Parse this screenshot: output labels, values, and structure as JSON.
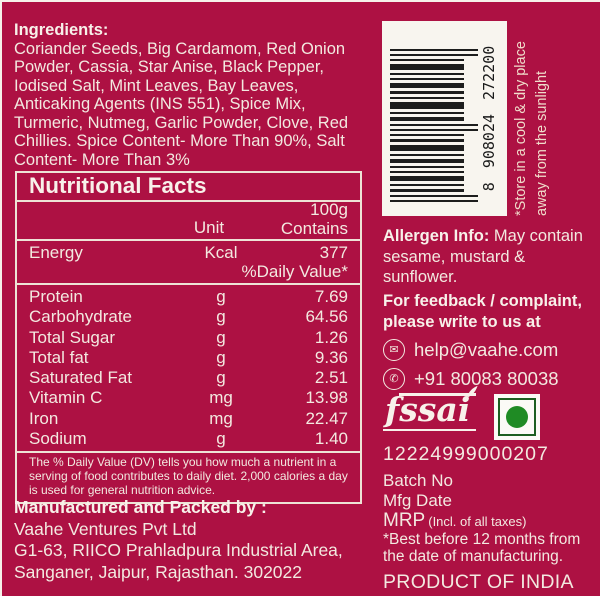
{
  "colors": {
    "background": "#ad1143",
    "text": "#f3e9e0",
    "table_border": "#eee3d6",
    "barcode_bg": "#f8f5ef",
    "bar_color": "#1d1d1d",
    "veg_green": "#1f8b24",
    "veg_border_green": "#1c5e20"
  },
  "ingredients": {
    "heading": "Ingredients:",
    "lines": [
      "Coriander Seeds, Big Cardamom, Red Onion",
      "Powder, Cassia, Star Anise, Black Pepper,",
      "Iodised Salt, Mint Leaves, Bay Leaves,",
      "Anticaking Agents (INS 551), Spice Mix,",
      "Turmeric, Nutmeg, Garlic Powder, Clove, Red",
      "Chillies. Spice Content- More Than 90%, Salt",
      "Content- More Than 3%"
    ]
  },
  "nutrition": {
    "title": "Nutritional Facts",
    "col_unit": "Unit",
    "col_amount_line1": "100g",
    "col_amount_line2": "Contains",
    "energy": {
      "label": "Energy",
      "unit": "Kcal",
      "value": "377"
    },
    "daily_value_note": "%Daily Value*",
    "rows": [
      {
        "label": "Protein",
        "unit": "g",
        "value": "7.69"
      },
      {
        "label": "Carbohydrate",
        "unit": "g",
        "value": "64.56"
      },
      {
        "label": "Total Sugar",
        "unit": "g",
        "value": "1.26"
      },
      {
        "label": "Total fat",
        "unit": "g",
        "value": "9.36"
      },
      {
        "label": "Saturated Fat",
        "unit": "g",
        "value": "2.51"
      },
      {
        "label": "Vitamin C",
        "unit": "mg",
        "value": "13.98"
      },
      {
        "label": "Iron",
        "unit": "mg",
        "value": "22.47"
      },
      {
        "label": "Sodium",
        "unit": "g",
        "value": "1.40"
      }
    ],
    "footnote": "The % Daily Value (DV) tells you how much a nutrient in a serving of food contributes to daily diet. 2,000 calories a day is used for general nutrition advice."
  },
  "barcode": {
    "number": "8 908024 272200",
    "bars": [
      {
        "t": 2,
        "l": true
      },
      {
        "t": 2,
        "l": true
      },
      {
        "t": 3
      },
      {
        "t": 2
      },
      {
        "t": 5
      },
      {
        "t": 2
      },
      {
        "t": 2
      },
      {
        "t": 4
      },
      {
        "t": 2
      },
      {
        "t": 6
      },
      {
        "t": 3
      },
      {
        "t": 2
      },
      {
        "t": 2,
        "l": true
      },
      {
        "t": 2,
        "l": true
      },
      {
        "t": 4
      },
      {
        "t": 2
      },
      {
        "t": 7
      },
      {
        "t": 2
      },
      {
        "t": 3
      },
      {
        "t": 5
      },
      {
        "t": 2
      },
      {
        "t": 2
      },
      {
        "t": 6
      },
      {
        "t": 2
      },
      {
        "t": 2,
        "l": true
      },
      {
        "t": 2,
        "l": true
      }
    ]
  },
  "storage": {
    "line1": "*Store in a cool & dry place",
    "line2": "away from the sunlight"
  },
  "allergen": {
    "heading": "Allergen Info:",
    "heading_rest": " May contain",
    "line2": "sesame, mustard &",
    "line3": "sunflower."
  },
  "feedback": {
    "line1": "For feedback / complaint,",
    "line2": "please write to us at",
    "email": "help@vaahe.com",
    "phone": "+91 80083 80038",
    "email_icon": "✉",
    "phone_icon": "✆"
  },
  "fssai": {
    "logo_text": "fssai",
    "license": "12224999000207"
  },
  "declarations": {
    "batch": "Batch No",
    "mfg": "Mfg Date",
    "mrp": "MRP",
    "mrp_note": "(Incl. of all taxes)",
    "best_before_line1": "*Best before 12 months from",
    "best_before_line2": "the date of manufacturing.",
    "origin": "PRODUCT OF INDIA"
  },
  "manufacturer": {
    "heading": "Manufactured and Packed by :",
    "name": "Vaahe Ventures Pvt Ltd",
    "address_line1": "G1-63, RIICO Prahladpura Industrial Area,",
    "address_line2": "Sanganer, Jaipur, Rajasthan. 302022"
  }
}
